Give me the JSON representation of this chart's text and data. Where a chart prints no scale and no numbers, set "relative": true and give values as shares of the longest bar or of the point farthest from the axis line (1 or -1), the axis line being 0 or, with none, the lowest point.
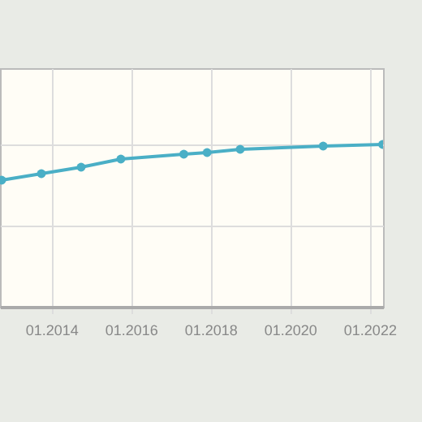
{
  "chart_data": {
    "type": "line",
    "relative": true,
    "marker": "circle",
    "grid": true,
    "tick_labels": "x",
    "x": [
      "2012-10",
      "2013-10",
      "2014-10",
      "2015-10",
      "2017-05",
      "2017-12",
      "2018-10",
      "2020-11",
      "2022-05"
    ],
    "xlim": [
      "2012-09-16",
      "2022-05-05"
    ],
    "xticks": [
      {
        "value": "2014-01",
        "label": "01.2014"
      },
      {
        "value": "2016-01",
        "label": "01.2016"
      },
      {
        "value": "2018-01",
        "label": "01.2018"
      },
      {
        "value": "2020-01",
        "label": "01.2020"
      },
      {
        "value": "2022-01",
        "label": "01.2022"
      }
    ],
    "series": [
      {
        "color": "#4aafc6",
        "values": [
          0.78,
          0.82,
          0.86,
          0.91,
          0.94,
          0.95,
          0.97,
          0.99,
          1.0
        ]
      }
    ]
  }
}
